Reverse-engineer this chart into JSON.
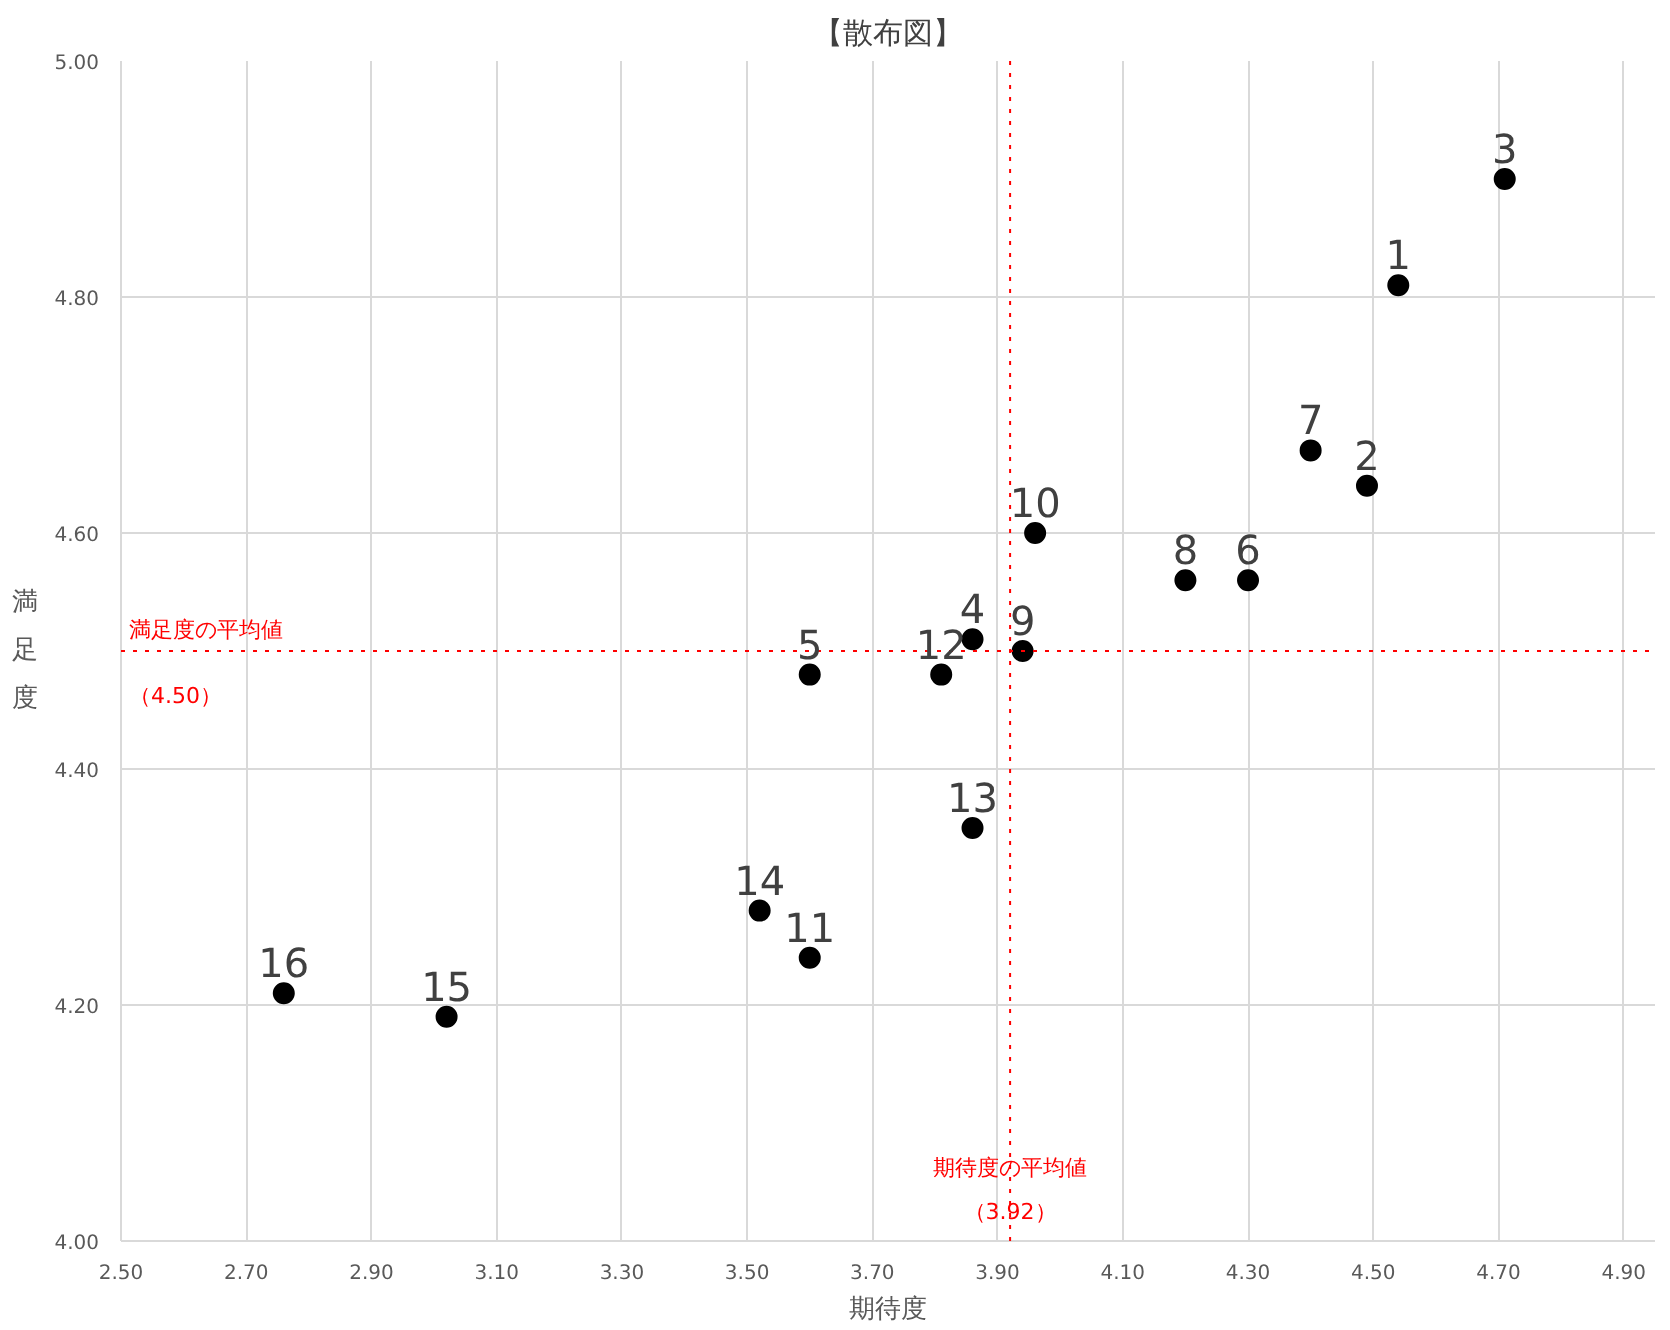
{
  "chart_data": {
    "type": "scatter",
    "title": "【散布図】",
    "xlabel": "期待度",
    "ylabel": "満足度",
    "x": [
      4.54,
      4.49,
      4.71,
      3.86,
      3.6,
      4.3,
      4.4,
      4.2,
      3.94,
      3.96,
      3.6,
      3.81,
      3.86,
      3.52,
      3.02,
      2.76
    ],
    "series": [
      {
        "color": "#000000",
        "values": [
          4.81,
          4.64,
          4.9,
          4.51,
          4.48,
          4.56,
          4.67,
          4.56,
          4.5,
          4.6,
          4.24,
          4.48,
          4.35,
          4.28,
          4.19,
          4.21
        ]
      }
    ],
    "marker": "circle",
    "grid": true,
    "xlim": [
      2.5,
      4.95
    ],
    "ylim": [
      4.0,
      5.0
    ],
    "xticks": [
      {
        "value": 2.5,
        "label": "2.50"
      },
      {
        "value": 2.7,
        "label": "2.70"
      },
      {
        "value": 2.9,
        "label": "2.90"
      },
      {
        "value": 3.1,
        "label": "3.10"
      },
      {
        "value": 3.3,
        "label": "3.30"
      },
      {
        "value": 3.5,
        "label": "3.50"
      },
      {
        "value": 3.7,
        "label": "3.70"
      },
      {
        "value": 3.9,
        "label": "3.90"
      },
      {
        "value": 4.1,
        "label": "4.10"
      },
      {
        "value": 4.3,
        "label": "4.30"
      },
      {
        "value": 4.5,
        "label": "4.50"
      },
      {
        "value": 4.7,
        "label": "4.70"
      },
      {
        "value": 4.9,
        "label": "4.90"
      }
    ],
    "yticks": [
      {
        "value": 4.0,
        "label": "4.00"
      },
      {
        "value": 4.2,
        "label": "4.20"
      },
      {
        "value": 4.4,
        "label": "4.40"
      },
      {
        "value": 4.6,
        "label": "4.60"
      },
      {
        "value": 4.8,
        "label": "4.80"
      },
      {
        "value": 5.0,
        "label": "5.00"
      }
    ],
    "ref_lines": [
      {
        "axis": "x",
        "value": 3.92,
        "label": "期待度の平均値（3.92）",
        "color": "#ff0000",
        "line_style": "dotted"
      },
      {
        "axis": "y",
        "value": 4.5,
        "label": "満足度の平均値（4.50）",
        "color": "#ff0000",
        "line_style": "dotted"
      }
    ],
    "annotations": [
      {
        "text": "1",
        "x": 4.54,
        "y": 4.81
      },
      {
        "text": "2",
        "x": 4.49,
        "y": 4.64
      },
      {
        "text": "3",
        "x": 4.71,
        "y": 4.9
      },
      {
        "text": "4",
        "x": 3.86,
        "y": 4.51
      },
      {
        "text": "5",
        "x": 3.6,
        "y": 4.48
      },
      {
        "text": "6",
        "x": 4.3,
        "y": 4.56
      },
      {
        "text": "7",
        "x": 4.4,
        "y": 4.67
      },
      {
        "text": "8",
        "x": 4.2,
        "y": 4.56
      },
      {
        "text": "9",
        "x": 3.94,
        "y": 4.5
      },
      {
        "text": "10",
        "x": 3.96,
        "y": 4.6
      },
      {
        "text": "11",
        "x": 3.6,
        "y": 4.24
      },
      {
        "text": "12",
        "x": 3.81,
        "y": 4.48
      },
      {
        "text": "13",
        "x": 3.86,
        "y": 4.35
      },
      {
        "text": "14",
        "x": 3.52,
        "y": 4.28
      },
      {
        "text": "15",
        "x": 3.02,
        "y": 4.19
      },
      {
        "text": "16",
        "x": 2.76,
        "y": 4.21
      }
    ]
  }
}
